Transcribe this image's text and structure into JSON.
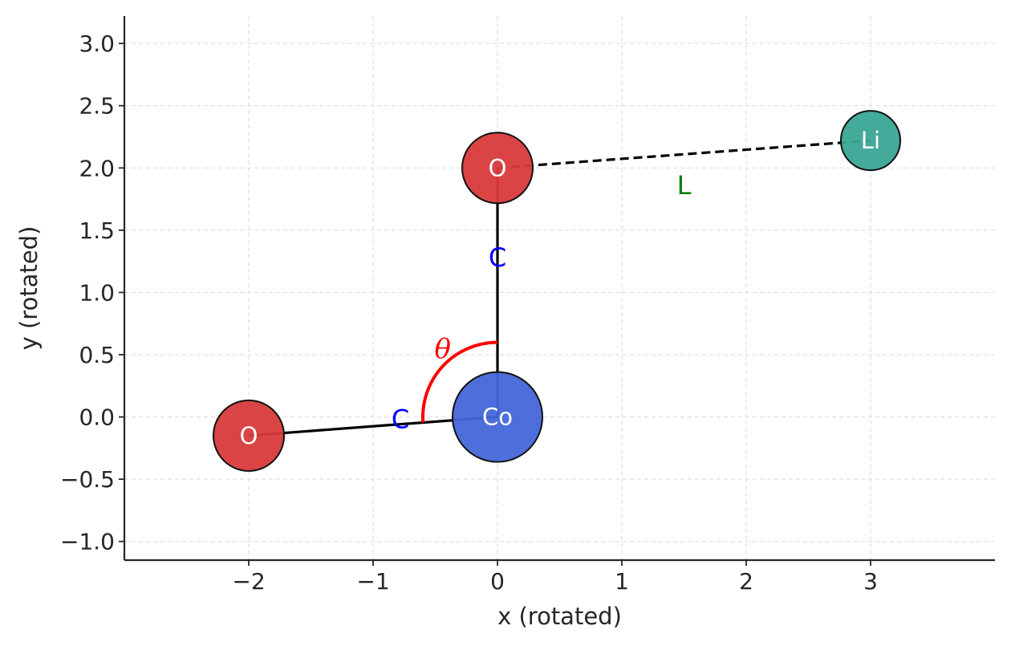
{
  "chart_data": {
    "type": "scatter",
    "xlabel": "x (rotated)",
    "ylabel": "y (rotated)",
    "xlim": [
      -3,
      4
    ],
    "ylim": [
      -1.15,
      3.22
    ],
    "xticks": [
      -2,
      -1,
      0,
      1,
      2,
      3
    ],
    "xtick_labels": [
      "−2",
      "−1",
      "0",
      "1",
      "2",
      "3"
    ],
    "yticks": [
      -1.0,
      -0.5,
      0.0,
      0.5,
      1.0,
      1.5,
      2.0,
      2.5,
      3.0
    ],
    "ytick_labels": [
      "−1.0",
      "−0.5",
      "0.0",
      "0.5",
      "1.0",
      "1.5",
      "2.0",
      "2.5",
      "3.0"
    ],
    "grid": true,
    "atoms": [
      {
        "label": "Co",
        "x": 0.0,
        "y": 0.0,
        "color": "#4466d9",
        "size": "large"
      },
      {
        "label": "O",
        "x": 0.0,
        "y": 2.0,
        "color": "#d93a3a",
        "size": "medium"
      },
      {
        "label": "O",
        "x": -2.0,
        "y": -0.15,
        "color": "#d93a3a",
        "size": "medium"
      },
      {
        "label": "Li",
        "x": 3.0,
        "y": 2.22,
        "color": "#3aa595",
        "size": "small"
      }
    ],
    "bonds": [
      {
        "from": [
          0.0,
          0.0
        ],
        "to": [
          0.0,
          2.0
        ],
        "style": "solid",
        "color": "#000000"
      },
      {
        "from": [
          0.0,
          0.0
        ],
        "to": [
          -2.0,
          -0.15
        ],
        "style": "solid",
        "color": "#000000"
      },
      {
        "from": [
          0.0,
          2.0
        ],
        "to": [
          3.0,
          2.22
        ],
        "style": "dashed",
        "color": "#000000"
      }
    ],
    "annotations": [
      {
        "text": "C",
        "x": 0.0,
        "y": 1.28,
        "color": "#0000ff"
      },
      {
        "text": "C",
        "x": -0.78,
        "y": -0.02,
        "color": "#0000ff"
      },
      {
        "text": "L",
        "x": 1.5,
        "y": 1.86,
        "color": "#008000"
      }
    ],
    "angle": {
      "label": "θ",
      "color": "#ff0000",
      "center": [
        0.0,
        0.0
      ],
      "radius": 0.6,
      "label_x": -0.44,
      "label_y": 0.55
    }
  }
}
